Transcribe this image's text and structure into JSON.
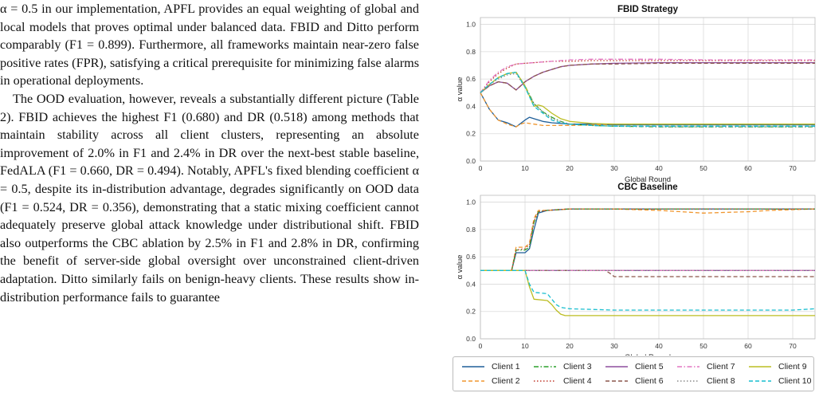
{
  "paragraphs": [
    "α = 0.5 in our implementation, APFL provides an equal weighting of global and local models that proves optimal under balanced data. FBID and Ditto perform comparably (F1 = 0.899). Furthermore, all frameworks maintain near-zero false positive rates (FPR), satisfying a critical prerequisite for minimizing false alarms in operational deployments.",
    "The OOD evaluation, however, reveals a substantially different picture (Table 2). FBID achieves the highest F1 (0.680) and DR (0.518) among methods that maintain stability across all client clusters, representing an absolute improvement of 2.0% in F1 and 2.4% in DR over the next-best stable baseline, FedALA (F1 = 0.660, DR = 0.494). Notably, APFL's fixed blending coefficient α = 0.5, despite its in-distribution advantage, degrades significantly on OOD data (F1 = 0.524, DR = 0.356), demonstrating that a static mixing coefficient cannot adequately preserve global attack knowledge under distributional shift. FBID also outperforms the CBC ablation by 2.5% in F1 and 2.8% in DR, confirming the benefit of server-side global oversight over unconstrained client-driven adaptation. Ditto similarly fails on benign-heavy clients. These results show in-distribution performance fails to guarantee"
  ],
  "chart_data": [
    {
      "type": "line",
      "title": "FBID Strategy",
      "xlabel": "Global Round",
      "ylabel": "α value",
      "xlim": [
        0,
        75
      ],
      "ylim": [
        0,
        1.05
      ],
      "xticks": [
        0,
        10,
        20,
        30,
        40,
        50,
        60,
        70
      ],
      "yticks": [
        0.0,
        0.2,
        0.4,
        0.6,
        0.8,
        1.0
      ],
      "grid": true,
      "series": [
        {
          "name": "Client 1",
          "x": [
            0,
            2,
            4,
            6,
            8,
            10,
            11,
            12,
            14,
            16,
            18,
            20,
            25,
            30,
            40,
            50,
            60,
            75
          ],
          "values": [
            0.5,
            0.38,
            0.3,
            0.28,
            0.25,
            0.3,
            0.32,
            0.31,
            0.29,
            0.28,
            0.275,
            0.27,
            0.27,
            0.265,
            0.265,
            0.265,
            0.265,
            0.265
          ]
        },
        {
          "name": "Client 2",
          "x": [
            0,
            2,
            4,
            6,
            8,
            9,
            10,
            12,
            14,
            16,
            18,
            20,
            25,
            30,
            40,
            50,
            60,
            75
          ],
          "values": [
            0.5,
            0.38,
            0.3,
            0.27,
            0.25,
            0.27,
            0.28,
            0.27,
            0.26,
            0.26,
            0.26,
            0.26,
            0.265,
            0.27,
            0.27,
            0.27,
            0.27,
            0.27
          ]
        },
        {
          "name": "Client 3",
          "x": [
            0,
            2,
            4,
            6,
            8,
            10,
            12,
            14,
            16,
            18,
            20,
            25,
            30,
            40,
            50,
            60,
            75
          ],
          "values": [
            0.5,
            0.56,
            0.61,
            0.64,
            0.65,
            0.55,
            0.42,
            0.36,
            0.32,
            0.29,
            0.27,
            0.26,
            0.255,
            0.25,
            0.25,
            0.25,
            0.25
          ]
        },
        {
          "name": "Client 4",
          "x": [
            0,
            2,
            4,
            6,
            8,
            10,
            12,
            14,
            16,
            18,
            20,
            25,
            30,
            40,
            50,
            60,
            75
          ],
          "values": [
            0.5,
            0.58,
            0.64,
            0.68,
            0.71,
            0.715,
            0.72,
            0.725,
            0.73,
            0.73,
            0.73,
            0.735,
            0.735,
            0.735,
            0.735,
            0.735,
            0.735
          ]
        },
        {
          "name": "Client 5",
          "x": [
            0,
            2,
            4,
            6,
            8,
            10,
            12,
            14,
            16,
            18,
            20,
            25,
            30,
            40,
            50,
            60,
            75
          ],
          "values": [
            0.5,
            0.55,
            0.58,
            0.57,
            0.52,
            0.58,
            0.62,
            0.65,
            0.67,
            0.69,
            0.7,
            0.71,
            0.715,
            0.72,
            0.72,
            0.72,
            0.72
          ]
        },
        {
          "name": "Client 6",
          "x": [
            0,
            2,
            4,
            6,
            8,
            10,
            12,
            14,
            16,
            18,
            20,
            25,
            30,
            40,
            50,
            60,
            75
          ],
          "values": [
            0.5,
            0.55,
            0.58,
            0.57,
            0.52,
            0.58,
            0.62,
            0.65,
            0.67,
            0.69,
            0.7,
            0.71,
            0.71,
            0.715,
            0.715,
            0.715,
            0.715
          ]
        },
        {
          "name": "Client 7",
          "x": [
            0,
            2,
            4,
            6,
            8,
            10,
            12,
            14,
            16,
            18,
            20,
            25,
            30,
            40,
            50,
            60,
            75
          ],
          "values": [
            0.5,
            0.59,
            0.65,
            0.69,
            0.71,
            0.715,
            0.72,
            0.725,
            0.73,
            0.735,
            0.74,
            0.745,
            0.745,
            0.745,
            0.74,
            0.74,
            0.74
          ]
        },
        {
          "name": "Client 8",
          "x": [
            0,
            2,
            4,
            6,
            8,
            10,
            12,
            14,
            16,
            18,
            20,
            25,
            30,
            40,
            50,
            60,
            75
          ],
          "values": [
            0.5,
            0.56,
            0.6,
            0.63,
            0.64,
            0.54,
            0.42,
            0.36,
            0.31,
            0.29,
            0.27,
            0.26,
            0.255,
            0.25,
            0.25,
            0.25,
            0.25
          ]
        },
        {
          "name": "Client 9",
          "x": [
            0,
            2,
            4,
            6,
            8,
            10,
            12,
            13,
            14,
            16,
            18,
            20,
            25,
            30,
            40,
            50,
            60,
            75
          ],
          "values": [
            0.5,
            0.56,
            0.61,
            0.64,
            0.65,
            0.55,
            0.4,
            0.41,
            0.4,
            0.35,
            0.31,
            0.29,
            0.275,
            0.27,
            0.27,
            0.27,
            0.27,
            0.27
          ]
        },
        {
          "name": "Client 10",
          "x": [
            0,
            2,
            4,
            6,
            8,
            10,
            12,
            14,
            16,
            18,
            20,
            25,
            30,
            40,
            50,
            60,
            75
          ],
          "values": [
            0.5,
            0.56,
            0.61,
            0.64,
            0.65,
            0.54,
            0.4,
            0.35,
            0.3,
            0.28,
            0.27,
            0.26,
            0.255,
            0.255,
            0.255,
            0.255,
            0.255
          ]
        }
      ]
    },
    {
      "type": "line",
      "title": "CBC Baseline",
      "xlabel": "Global Round",
      "ylabel": "α value",
      "xlim": [
        0,
        75
      ],
      "ylim": [
        0,
        1.05
      ],
      "xticks": [
        0,
        10,
        20,
        30,
        40,
        50,
        60,
        70
      ],
      "yticks": [
        0.0,
        0.2,
        0.4,
        0.6,
        0.8,
        1.0
      ],
      "grid": true,
      "series": [
        {
          "name": "Client 1",
          "x": [
            0,
            7,
            8,
            10,
            11,
            12,
            13,
            15,
            20,
            30,
            40,
            50,
            60,
            75
          ],
          "values": [
            0.5,
            0.5,
            0.63,
            0.63,
            0.66,
            0.8,
            0.92,
            0.94,
            0.95,
            0.95,
            0.95,
            0.95,
            0.95,
            0.95
          ]
        },
        {
          "name": "Client 2",
          "x": [
            0,
            7,
            8,
            10,
            11,
            12,
            13,
            15,
            20,
            30,
            40,
            45,
            50,
            55,
            60,
            65,
            70,
            75
          ],
          "values": [
            0.5,
            0.5,
            0.67,
            0.67,
            0.7,
            0.88,
            0.94,
            0.94,
            0.95,
            0.95,
            0.94,
            0.93,
            0.92,
            0.925,
            0.93,
            0.94,
            0.945,
            0.95
          ]
        },
        {
          "name": "Client 3",
          "x": [
            0,
            7,
            8,
            10,
            11,
            12,
            13,
            15,
            20,
            30,
            40,
            50,
            60,
            75
          ],
          "values": [
            0.5,
            0.5,
            0.65,
            0.65,
            0.67,
            0.85,
            0.93,
            0.94,
            0.95,
            0.95,
            0.95,
            0.95,
            0.95,
            0.95
          ]
        },
        {
          "name": "Client 4",
          "x": [
            0,
            7,
            8,
            10,
            11,
            12,
            13,
            15,
            20,
            30,
            40,
            50,
            60,
            75
          ],
          "values": [
            0.5,
            0.5,
            0.65,
            0.66,
            0.69,
            0.86,
            0.93,
            0.94,
            0.95,
            0.95,
            0.95,
            0.95,
            0.95,
            0.95
          ]
        },
        {
          "name": "Client 5",
          "x": [
            0,
            10,
            20,
            30,
            40,
            50,
            60,
            75
          ],
          "values": [
            0.5,
            0.5,
            0.5,
            0.5,
            0.5,
            0.5,
            0.5,
            0.5
          ]
        },
        {
          "name": "Client 6",
          "x": [
            0,
            10,
            20,
            28,
            29,
            30,
            40,
            50,
            60,
            75
          ],
          "values": [
            0.5,
            0.5,
            0.5,
            0.5,
            0.48,
            0.455,
            0.455,
            0.455,
            0.455,
            0.455
          ]
        },
        {
          "name": "Client 7",
          "x": [
            0,
            10,
            20,
            30,
            40,
            50,
            60,
            75
          ],
          "values": [
            0.5,
            0.5,
            0.5,
            0.5,
            0.5,
            0.5,
            0.5,
            0.5
          ]
        },
        {
          "name": "Client 8",
          "x": [
            0,
            10,
            20,
            30,
            40,
            50,
            60,
            75
          ],
          "values": [
            0.5,
            0.5,
            0.5,
            0.5,
            0.5,
            0.5,
            0.5,
            0.5
          ]
        },
        {
          "name": "Client 9",
          "x": [
            0,
            10,
            11,
            12,
            15,
            16,
            17,
            18,
            19,
            20,
            30,
            40,
            50,
            60,
            75
          ],
          "values": [
            0.5,
            0.5,
            0.38,
            0.29,
            0.28,
            0.25,
            0.21,
            0.18,
            0.17,
            0.17,
            0.17,
            0.17,
            0.17,
            0.17,
            0.17
          ]
        },
        {
          "name": "Client 10",
          "x": [
            0,
            10,
            11,
            12,
            15,
            16,
            17,
            18,
            20,
            30,
            40,
            50,
            60,
            70,
            75
          ],
          "values": [
            0.5,
            0.5,
            0.4,
            0.34,
            0.33,
            0.29,
            0.25,
            0.23,
            0.22,
            0.21,
            0.21,
            0.21,
            0.21,
            0.21,
            0.22
          ]
        }
      ]
    }
  ],
  "series_styles": [
    {
      "name": "Client 1",
      "color": "#1f5f99",
      "dash": "solid"
    },
    {
      "name": "Client 2",
      "color": "#f0962e",
      "dash": "dashed"
    },
    {
      "name": "Client 3",
      "color": "#2ca02c",
      "dash": "dashdot"
    },
    {
      "name": "Client 4",
      "color": "#c0392b",
      "dash": "dotted"
    },
    {
      "name": "Client 5",
      "color": "#8e4e9e",
      "dash": "solid"
    },
    {
      "name": "Client 6",
      "color": "#8c564b",
      "dash": "dashed"
    },
    {
      "name": "Client 7",
      "color": "#e377c2",
      "dash": "dashdot"
    },
    {
      "name": "Client 8",
      "color": "#8a8a8a",
      "dash": "dotted"
    },
    {
      "name": "Client 9",
      "color": "#bcbd22",
      "dash": "solid"
    },
    {
      "name": "Client 10",
      "color": "#17becf",
      "dash": "dashed"
    }
  ]
}
